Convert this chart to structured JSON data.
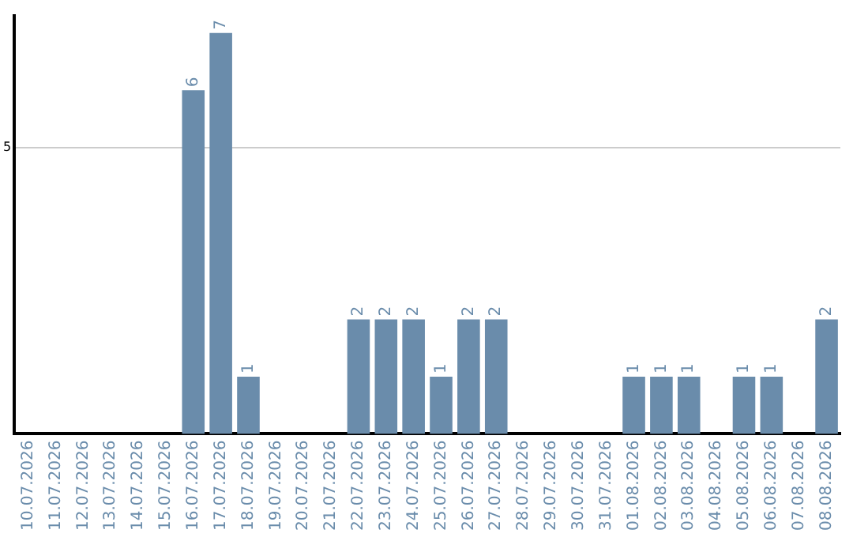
{
  "chart_data": {
    "type": "bar",
    "categories": [
      "10.07.2026",
      "11.07.2026",
      "12.07.2026",
      "13.07.2026",
      "14.07.2026",
      "15.07.2026",
      "16.07.2026",
      "17.07.2026",
      "18.07.2026",
      "19.07.2026",
      "20.07.2026",
      "21.07.2026",
      "22.07.2026",
      "23.07.2026",
      "24.07.2026",
      "25.07.2026",
      "26.07.2026",
      "27.07.2026",
      "28.07.2026",
      "29.07.2026",
      "30.07.2026",
      "31.07.2026",
      "01.08.2026",
      "02.08.2026",
      "03.08.2026",
      "04.08.2026",
      "05.08.2026",
      "06.08.2026",
      "07.08.2026",
      "08.08.2026"
    ],
    "values": [
      0,
      0,
      0,
      0,
      0,
      0,
      6,
      7,
      1,
      0,
      0,
      0,
      2,
      2,
      2,
      1,
      2,
      2,
      0,
      0,
      0,
      0,
      1,
      1,
      1,
      0,
      1,
      1,
      0,
      2
    ],
    "value_labels": [
      null,
      null,
      null,
      null,
      null,
      null,
      "6",
      "7",
      "1",
      null,
      null,
      null,
      "2",
      "2",
      "2",
      "1",
      "2",
      "2",
      null,
      null,
      null,
      null,
      "1",
      "1",
      "1",
      null,
      "1",
      "1",
      null,
      "2"
    ],
    "color": "#6a8cab",
    "ylim": [
      0,
      7.3
    ],
    "yticks": [
      5
    ],
    "grid": "y",
    "legend": false
  }
}
